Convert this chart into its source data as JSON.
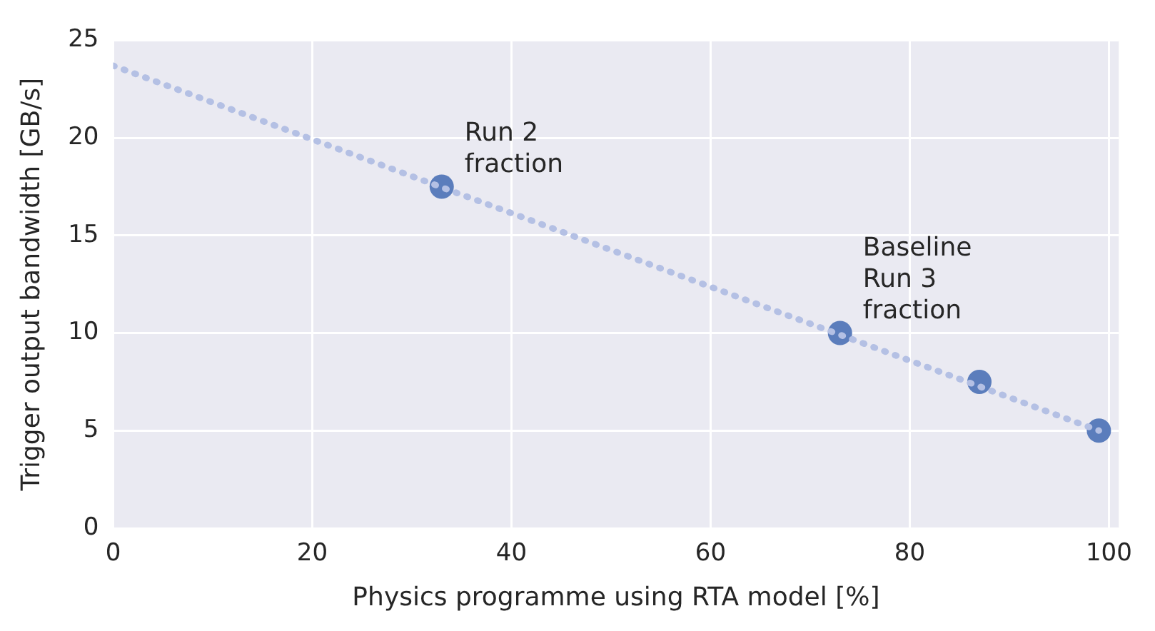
{
  "chart_data": {
    "type": "scatter",
    "xlabel": "Physics programme using RTA model [%]",
    "ylabel": "Trigger output bandwidth [GB/s]",
    "xlim": [
      0,
      101
    ],
    "ylim": [
      0,
      25
    ],
    "xticks": [
      0,
      20,
      40,
      60,
      80,
      100
    ],
    "yticks": [
      0,
      5,
      10,
      15,
      20,
      25
    ],
    "grid": true,
    "marker": "circle",
    "series": [
      {
        "type": "line",
        "color": "#b4c0e4",
        "x": [
          0,
          99
        ],
        "values": [
          23.7,
          5
        ],
        "line_style": "dotted",
        "marker": "none"
      },
      {
        "type": "scatter",
        "color": "#5b7dbc",
        "x": [
          33,
          73,
          87,
          99
        ],
        "values": [
          17.5,
          10,
          7.5,
          5
        ]
      }
    ],
    "annotations": [
      {
        "text": "Run 2\nfraction",
        "x": 33,
        "y": 17.5
      },
      {
        "text": "Baseline\nRun 3\nfraction",
        "x": 73,
        "y": 10
      }
    ]
  }
}
